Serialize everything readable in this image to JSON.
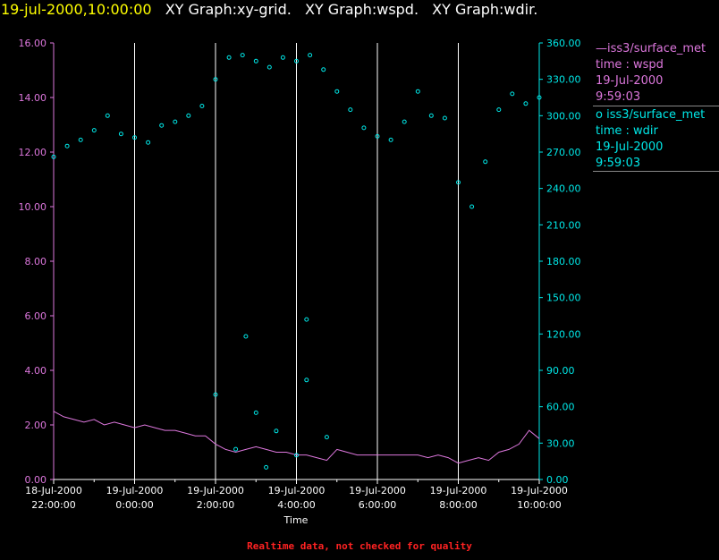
{
  "header": {
    "timestamp": "19-jul-2000,10:00:00",
    "graphs": [
      "XY Graph:xy-grid.",
      "XY Graph:wspd.",
      "XY Graph:wdir."
    ]
  },
  "legend": [
    {
      "marker": "—",
      "source": "iss3/surface_met",
      "field": "time : wspd",
      "date": "19-Jul-2000",
      "time": "9:59:03"
    },
    {
      "marker": "o",
      "source": "iss3/surface_met",
      "field": "time : wdir",
      "date": "19-Jul-2000",
      "time": "9:59:03"
    }
  ],
  "footer": "Realtime data, not checked for quality",
  "colors": {
    "wspd": "#dd77dd",
    "wdir": "#00e8e8",
    "grid": "#ffffff",
    "axis": "#ffffff"
  },
  "chart_data": {
    "type": "line",
    "xlabel": "Time",
    "x_ticks": [
      {
        "date": "18-Jul-2000",
        "time": "22:00:00"
      },
      {
        "date": "19-Jul-2000",
        "time": "0:00:00"
      },
      {
        "date": "19-Jul-2000",
        "time": "2:00:00"
      },
      {
        "date": "19-Jul-2000",
        "time": "4:00:00"
      },
      {
        "date": "19-Jul-2000",
        "time": "6:00:00"
      },
      {
        "date": "19-Jul-2000",
        "time": "8:00:00"
      },
      {
        "date": "19-Jul-2000",
        "time": "10:00:00"
      }
    ],
    "x_range": [
      "18-Jul-2000 22:00:00",
      "19-Jul-2000 10:00:00"
    ],
    "grid": "vertical lines at each 2-hour major tick",
    "y_left": {
      "range": [
        0,
        16
      ],
      "ticks": [
        "0.00",
        "2.00",
        "4.00",
        "6.00",
        "8.00",
        "10.00",
        "12.00",
        "14.00",
        "16.00"
      ]
    },
    "y_right": {
      "range": [
        0,
        360
      ],
      "ticks": [
        "0.00",
        "30.00",
        "60.00",
        "90.00",
        "120.00",
        "150.00",
        "180.00",
        "210.00",
        "240.00",
        "270.00",
        "300.00",
        "330.00",
        "360.00"
      ]
    },
    "series": [
      {
        "name": "wspd",
        "style": "line",
        "axis": "left",
        "points": [
          [
            "18-Jul-2000 22:00",
            2.5
          ],
          [
            "18-Jul-2000 22:15",
            2.3
          ],
          [
            "18-Jul-2000 22:30",
            2.2
          ],
          [
            "18-Jul-2000 22:45",
            2.1
          ],
          [
            "18-Jul-2000 23:00",
            2.2
          ],
          [
            "18-Jul-2000 23:15",
            2.0
          ],
          [
            "18-Jul-2000 23:30",
            2.1
          ],
          [
            "18-Jul-2000 23:45",
            2.0
          ],
          [
            "19-Jul-2000 00:00",
            1.9
          ],
          [
            "19-Jul-2000 00:15",
            2.0
          ],
          [
            "19-Jul-2000 00:30",
            1.9
          ],
          [
            "19-Jul-2000 00:45",
            1.8
          ],
          [
            "19-Jul-2000 01:00",
            1.8
          ],
          [
            "19-Jul-2000 01:15",
            1.7
          ],
          [
            "19-Jul-2000 01:30",
            1.6
          ],
          [
            "19-Jul-2000 01:45",
            1.6
          ],
          [
            "19-Jul-2000 02:00",
            1.3
          ],
          [
            "19-Jul-2000 02:15",
            1.1
          ],
          [
            "19-Jul-2000 02:30",
            1.0
          ],
          [
            "19-Jul-2000 02:45",
            1.1
          ],
          [
            "19-Jul-2000 03:00",
            1.2
          ],
          [
            "19-Jul-2000 03:15",
            1.1
          ],
          [
            "19-Jul-2000 03:30",
            1.0
          ],
          [
            "19-Jul-2000 03:45",
            1.0
          ],
          [
            "19-Jul-2000 04:00",
            0.9
          ],
          [
            "19-Jul-2000 04:15",
            0.9
          ],
          [
            "19-Jul-2000 04:30",
            0.8
          ],
          [
            "19-Jul-2000 04:45",
            0.7
          ],
          [
            "19-Jul-2000 05:00",
            1.1
          ],
          [
            "19-Jul-2000 05:15",
            1.0
          ],
          [
            "19-Jul-2000 05:30",
            0.9
          ],
          [
            "19-Jul-2000 05:45",
            0.9
          ],
          [
            "19-Jul-2000 06:00",
            0.9
          ],
          [
            "19-Jul-2000 06:15",
            0.9
          ],
          [
            "19-Jul-2000 06:30",
            0.9
          ],
          [
            "19-Jul-2000 06:45",
            0.9
          ],
          [
            "19-Jul-2000 07:00",
            0.9
          ],
          [
            "19-Jul-2000 07:15",
            0.8
          ],
          [
            "19-Jul-2000 07:30",
            0.9
          ],
          [
            "19-Jul-2000 07:45",
            0.8
          ],
          [
            "19-Jul-2000 08:00",
            0.6
          ],
          [
            "19-Jul-2000 08:15",
            0.7
          ],
          [
            "19-Jul-2000 08:30",
            0.8
          ],
          [
            "19-Jul-2000 08:45",
            0.7
          ],
          [
            "19-Jul-2000 09:00",
            1.0
          ],
          [
            "19-Jul-2000 09:15",
            1.1
          ],
          [
            "19-Jul-2000 09:30",
            1.3
          ],
          [
            "19-Jul-2000 09:45",
            1.8
          ],
          [
            "19-Jul-2000 10:00",
            1.5
          ]
        ]
      },
      {
        "name": "wdir",
        "style": "scatter",
        "axis": "right",
        "points": [
          [
            "18-Jul-2000 22:00",
            266
          ],
          [
            "18-Jul-2000 22:20",
            275
          ],
          [
            "18-Jul-2000 22:40",
            280
          ],
          [
            "18-Jul-2000 23:00",
            288
          ],
          [
            "18-Jul-2000 23:20",
            300
          ],
          [
            "18-Jul-2000 23:40",
            285
          ],
          [
            "19-Jul-2000 00:00",
            282
          ],
          [
            "19-Jul-2000 00:20",
            278
          ],
          [
            "19-Jul-2000 00:40",
            292
          ],
          [
            "19-Jul-2000 01:00",
            295
          ],
          [
            "19-Jul-2000 01:20",
            300
          ],
          [
            "19-Jul-2000 01:40",
            308
          ],
          [
            "19-Jul-2000 02:00",
            330
          ],
          [
            "19-Jul-2000 02:20",
            348
          ],
          [
            "19-Jul-2000 02:40",
            350
          ],
          [
            "19-Jul-2000 03:00",
            345
          ],
          [
            "19-Jul-2000 03:20",
            340
          ],
          [
            "19-Jul-2000 03:40",
            348
          ],
          [
            "19-Jul-2000 04:00",
            345
          ],
          [
            "19-Jul-2000 04:20",
            350
          ],
          [
            "19-Jul-2000 04:40",
            338
          ],
          [
            "19-Jul-2000 05:00",
            320
          ],
          [
            "19-Jul-2000 05:20",
            305
          ],
          [
            "19-Jul-2000 05:40",
            290
          ],
          [
            "19-Jul-2000 06:00",
            283
          ],
          [
            "19-Jul-2000 06:20",
            280
          ],
          [
            "19-Jul-2000 06:40",
            295
          ],
          [
            "19-Jul-2000 07:00",
            320
          ],
          [
            "19-Jul-2000 07:20",
            300
          ],
          [
            "19-Jul-2000 07:40",
            298
          ],
          [
            "19-Jul-2000 08:00",
            245
          ],
          [
            "19-Jul-2000 08:20",
            225
          ],
          [
            "19-Jul-2000 08:40",
            262
          ],
          [
            "19-Jul-2000 09:00",
            305
          ],
          [
            "19-Jul-2000 09:20",
            318
          ],
          [
            "19-Jul-2000 09:40",
            310
          ],
          [
            "19-Jul-2000 10:00",
            315
          ],
          [
            "19-Jul-2000 02:00",
            70
          ],
          [
            "19-Jul-2000 02:30",
            25
          ],
          [
            "19-Jul-2000 02:45",
            118
          ],
          [
            "19-Jul-2000 03:00",
            55
          ],
          [
            "19-Jul-2000 03:15",
            10
          ],
          [
            "19-Jul-2000 03:30",
            40
          ],
          [
            "19-Jul-2000 04:00",
            20
          ],
          [
            "19-Jul-2000 04:15",
            132
          ],
          [
            "19-Jul-2000 04:15",
            82
          ],
          [
            "19-Jul-2000 04:45",
            35
          ]
        ]
      }
    ]
  }
}
